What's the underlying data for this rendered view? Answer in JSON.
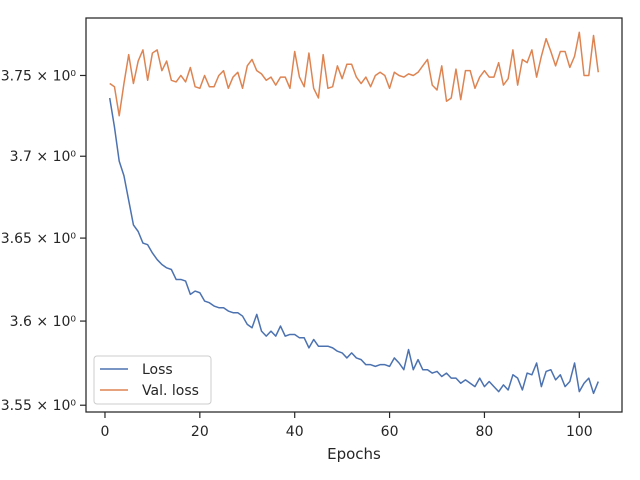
{
  "chart_data": {
    "type": "line",
    "title": "",
    "xlabel": "Epochs",
    "ylabel": "",
    "y_scale": "log",
    "xlim": [
      -4,
      109
    ],
    "ylim": [
      3.546,
      3.786
    ],
    "grid": false,
    "legend_position": "lower-left",
    "x_ticks": [
      0,
      20,
      40,
      60,
      80,
      100
    ],
    "x_tick_labels": [
      "0",
      "20",
      "40",
      "60",
      "80",
      "100"
    ],
    "y_ticks": [
      3.55,
      3.6,
      3.65,
      3.7,
      3.75
    ],
    "y_tick_labels": [
      "3.55 × 10⁰",
      "3.6 × 10⁰",
      "3.65 × 10⁰",
      "3.7 × 10⁰",
      "3.75 × 10⁰"
    ],
    "x": [
      1,
      2,
      3,
      4,
      5,
      6,
      7,
      8,
      9,
      10,
      11,
      12,
      13,
      14,
      15,
      16,
      17,
      18,
      19,
      20,
      21,
      22,
      23,
      24,
      25,
      26,
      27,
      28,
      29,
      30,
      31,
      32,
      33,
      34,
      35,
      36,
      37,
      38,
      39,
      40,
      41,
      42,
      43,
      44,
      45,
      46,
      47,
      48,
      49,
      50,
      51,
      52,
      53,
      54,
      55,
      56,
      57,
      58,
      59,
      60,
      61,
      62,
      63,
      64,
      65,
      66,
      67,
      68,
      69,
      70,
      71,
      72,
      73,
      74,
      75,
      76,
      77,
      78,
      79,
      80,
      81,
      82,
      83,
      84,
      85,
      86,
      87,
      88,
      89,
      90,
      91,
      92,
      93,
      94,
      95,
      96,
      97,
      98,
      99,
      100,
      101,
      102,
      103,
      104
    ],
    "series": [
      {
        "name": "Loss",
        "color": "#4c72b0",
        "values": [
          3.736,
          3.718,
          3.697,
          3.688,
          3.673,
          3.658,
          3.654,
          3.647,
          3.646,
          3.641,
          3.637,
          3.634,
          3.632,
          3.631,
          3.625,
          3.625,
          3.624,
          3.616,
          3.618,
          3.617,
          3.612,
          3.611,
          3.609,
          3.608,
          3.608,
          3.606,
          3.605,
          3.605,
          3.603,
          3.598,
          3.596,
          3.604,
          3.594,
          3.591,
          3.594,
          3.591,
          3.597,
          3.591,
          3.592,
          3.592,
          3.59,
          3.59,
          3.584,
          3.589,
          3.585,
          3.585,
          3.585,
          3.584,
          3.582,
          3.581,
          3.578,
          3.581,
          3.578,
          3.577,
          3.574,
          3.574,
          3.573,
          3.574,
          3.574,
          3.573,
          3.578,
          3.575,
          3.571,
          3.583,
          3.571,
          3.577,
          3.571,
          3.571,
          3.569,
          3.57,
          3.567,
          3.569,
          3.566,
          3.566,
          3.563,
          3.565,
          3.563,
          3.561,
          3.566,
          3.561,
          3.564,
          3.561,
          3.558,
          3.562,
          3.559,
          3.568,
          3.566,
          3.559,
          3.569,
          3.568,
          3.575,
          3.561,
          3.57,
          3.571,
          3.565,
          3.568,
          3.561,
          3.564,
          3.575,
          3.558,
          3.563,
          3.566,
          3.557,
          3.564
        ]
      },
      {
        "name": "Val. loss",
        "color": "#dd8452",
        "values": [
          3.745,
          3.743,
          3.725,
          3.745,
          3.763,
          3.745,
          3.759,
          3.766,
          3.747,
          3.764,
          3.766,
          3.753,
          3.759,
          3.747,
          3.746,
          3.75,
          3.746,
          3.755,
          3.743,
          3.742,
          3.75,
          3.743,
          3.743,
          3.75,
          3.753,
          3.742,
          3.749,
          3.752,
          3.742,
          3.756,
          3.76,
          3.753,
          3.751,
          3.747,
          3.749,
          3.744,
          3.749,
          3.749,
          3.742,
          3.765,
          3.749,
          3.743,
          3.764,
          3.742,
          3.736,
          3.763,
          3.742,
          3.743,
          3.756,
          3.748,
          3.757,
          3.757,
          3.749,
          3.745,
          3.749,
          3.743,
          3.75,
          3.752,
          3.75,
          3.742,
          3.752,
          3.75,
          3.749,
          3.751,
          3.75,
          3.752,
          3.756,
          3.76,
          3.744,
          3.741,
          3.756,
          3.734,
          3.736,
          3.754,
          3.735,
          3.753,
          3.753,
          3.742,
          3.749,
          3.753,
          3.749,
          3.749,
          3.758,
          3.744,
          3.748,
          3.766,
          3.744,
          3.76,
          3.758,
          3.766,
          3.749,
          3.762,
          3.773,
          3.765,
          3.756,
          3.765,
          3.765,
          3.755,
          3.762,
          3.777,
          3.75,
          3.75,
          3.775,
          3.752
        ]
      }
    ]
  }
}
